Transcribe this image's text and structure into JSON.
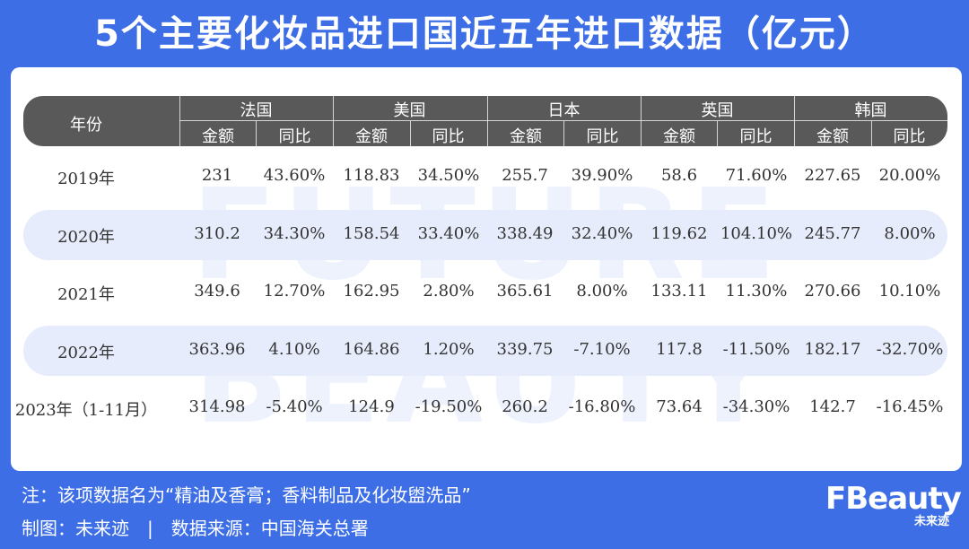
{
  "title": "5个主要化妆品进口国近五年进口数据（亿元）",
  "colors": {
    "background": "#3d6ee6",
    "header_bar": "#595959",
    "row_stripe": "#e6ecfb",
    "watermark": "#dfe7fb"
  },
  "watermark": {
    "line1": "FUTURE",
    "line2": "BEAUTY"
  },
  "chart_data": {
    "type": "table",
    "year_header": "年份",
    "countries": [
      "法国",
      "美国",
      "日本",
      "英国",
      "韩国"
    ],
    "sub_headers": [
      "金额",
      "同比"
    ],
    "rows": [
      {
        "year": "2019年",
        "cells": [
          "231",
          "43.60%",
          "118.83",
          "34.50%",
          "255.7",
          "39.90%",
          "58.6",
          "71.60%",
          "227.65",
          "20.00%"
        ]
      },
      {
        "year": "2020年",
        "cells": [
          "310.2",
          "34.30%",
          "158.54",
          "33.40%",
          "338.49",
          "32.40%",
          "119.62",
          "104.10%",
          "245.77",
          "8.00%"
        ]
      },
      {
        "year": "2021年",
        "cells": [
          "349.6",
          "12.70%",
          "162.95",
          "2.80%",
          "365.61",
          "8.00%",
          "133.11",
          "11.30%",
          "270.66",
          "10.10%"
        ]
      },
      {
        "year": "2022年",
        "cells": [
          "363.96",
          "4.10%",
          "164.86",
          "1.20%",
          "339.75",
          "-7.10%",
          "117.8",
          "-11.50%",
          "182.17",
          "-32.70%"
        ]
      },
      {
        "year": "2023年（1-11月）",
        "cells": [
          "314.98",
          "-5.40%",
          "124.9",
          "-19.50%",
          "260.2",
          "-16.80%",
          "73.64",
          "-34.30%",
          "142.7",
          "-16.45%"
        ]
      }
    ]
  },
  "footer": {
    "note": "注：该项数据名为“精油及香膏；香料制品及化妆盥洗品”",
    "credit": "制图：未来迹　|　数据来源：中国海关总署"
  },
  "logo": {
    "main": "FBeauty",
    "sub": "未来迹"
  }
}
